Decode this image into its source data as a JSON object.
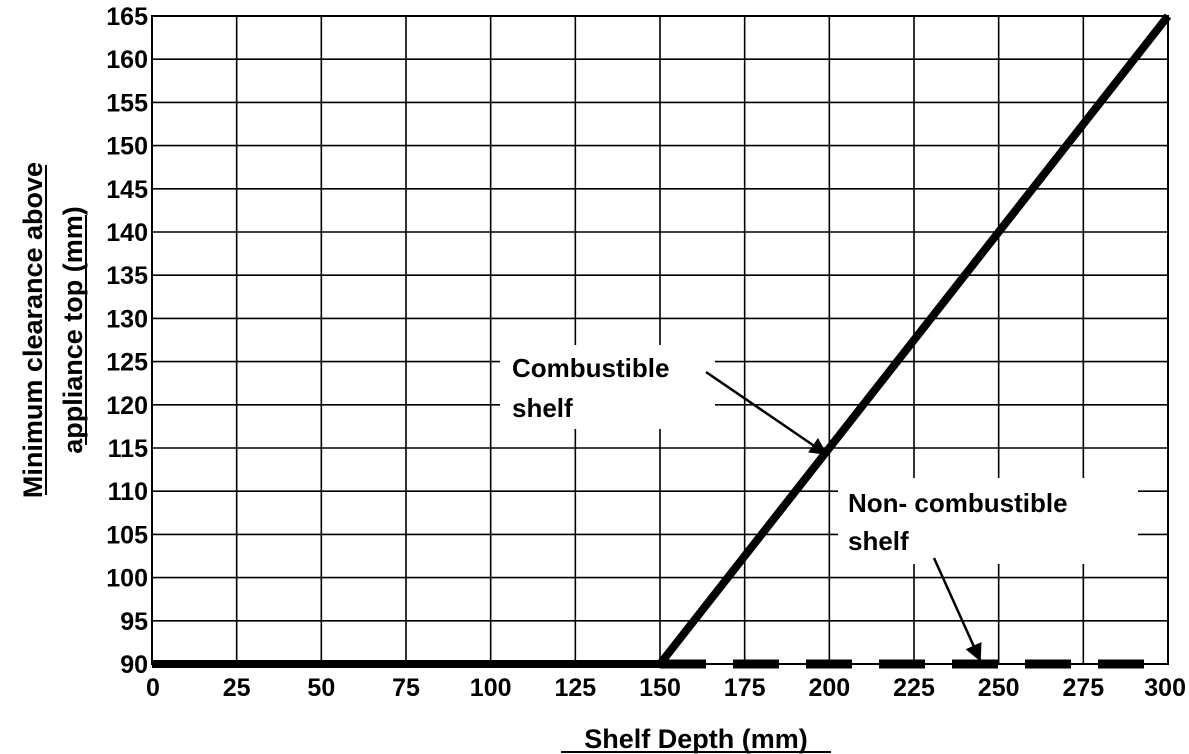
{
  "chart_data": {
    "type": "line",
    "xlabel": "Shelf Depth (mm)",
    "ylabel_lines": [
      "Minimum clearance above",
      "appliance top (mm)"
    ],
    "xlim": [
      0,
      300
    ],
    "ylim": [
      90,
      165
    ],
    "x_ticks": [
      0,
      25,
      50,
      75,
      100,
      125,
      150,
      175,
      200,
      225,
      250,
      275,
      300
    ],
    "y_ticks": [
      90,
      95,
      100,
      105,
      110,
      115,
      120,
      125,
      130,
      135,
      140,
      145,
      150,
      155,
      160,
      165
    ],
    "grid": true,
    "series": [
      {
        "name": "Combustible shelf",
        "style": "solid",
        "color": "#000000",
        "points": [
          [
            0,
            90
          ],
          [
            150,
            90
          ],
          [
            300,
            165
          ]
        ]
      },
      {
        "name": "Non- combustible shelf",
        "style": "dashed",
        "color": "#000000",
        "points": [
          [
            150,
            90
          ],
          [
            300,
            90
          ]
        ]
      }
    ],
    "annotations": [
      {
        "lines": [
          "Combustible",
          "shelf"
        ],
        "points_to": [
          200,
          115
        ]
      },
      {
        "lines": [
          "Non- combustible",
          "shelf"
        ],
        "points_to": [
          250,
          90
        ]
      }
    ]
  }
}
